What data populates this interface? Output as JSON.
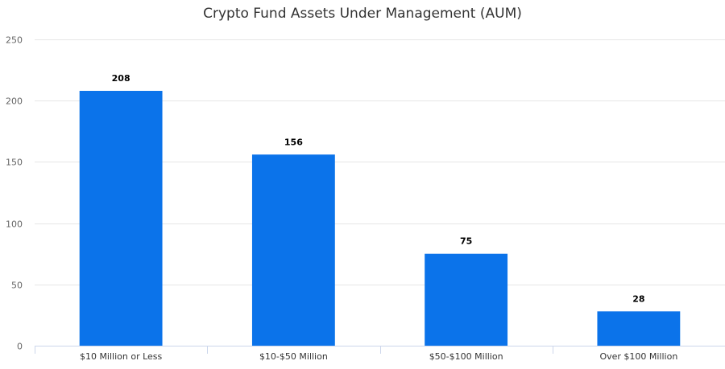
{
  "chart_data": {
    "type": "bar",
    "title": "Crypto Fund Assets Under Management (AUM)",
    "xlabel": "",
    "ylabel": "",
    "categories": [
      "$10 Million or Less",
      "$10-$50 Million",
      "$50-$100 Million",
      "Over $100 Million"
    ],
    "values": [
      208,
      156,
      75,
      28
    ],
    "ylim": [
      0,
      250
    ],
    "yticks": [
      0,
      50,
      100,
      150,
      200,
      250
    ],
    "grid": true,
    "legend": "none",
    "data_labels": true
  },
  "colors": {
    "bar": "#0b73ea"
  }
}
